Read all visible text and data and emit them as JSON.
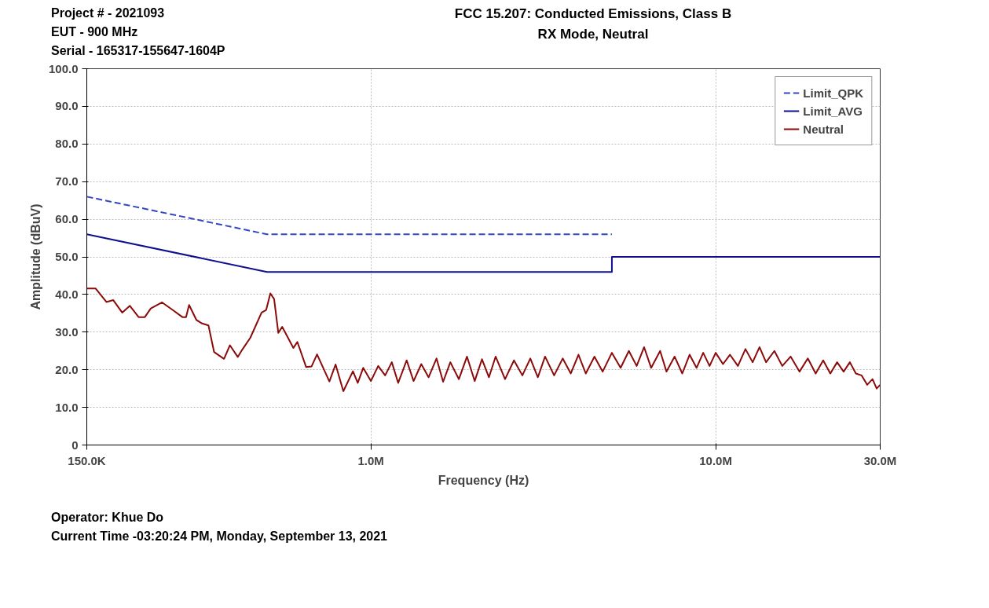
{
  "chart_data": {
    "type": "line",
    "title": "FCC 15.207: Conducted Emissions, Class B",
    "subtitle": "RX Mode, Neutral",
    "xlabel": "Frequency (Hz)",
    "ylabel": "Amplitude (dBuV)",
    "annotations": [
      "Project # - 2021093",
      "EUT - 900 MHz",
      "Serial - 165317-155647-1604P",
      "Operator: Khue Do",
      "Current Time -03:20:24 PM, Monday, September 13, 2021"
    ],
    "log": "x",
    "grid": true,
    "legend": "top right",
    "xlim": [
      150000,
      30000000
    ],
    "xticks": [
      {
        "value": 150000,
        "label": "150.0K"
      },
      {
        "value": 1000000,
        "label": "1.0M"
      },
      {
        "value": 10000000,
        "label": "10.0M"
      },
      {
        "value": 30000000,
        "label": "30.0M"
      }
    ],
    "ylim": [
      0,
      100
    ],
    "yticks": [
      0,
      {
        "value": 10,
        "label": "10.0"
      },
      {
        "value": 20,
        "label": "20.0"
      },
      {
        "value": 30,
        "label": "30.0"
      },
      {
        "value": 40,
        "label": "40.0"
      },
      {
        "value": 50,
        "label": "50.0"
      },
      {
        "value": 60,
        "label": "60.0"
      },
      {
        "value": 70,
        "label": "70.0"
      },
      {
        "value": 80,
        "label": "80.0"
      },
      {
        "value": 90,
        "label": "90.0"
      },
      {
        "value": 100,
        "label": "100.0"
      }
    ],
    "series": [
      {
        "name": "Limit_QPK",
        "color": "#3346c4",
        "line_style": "dashed",
        "x": [
          150000,
          500000,
          5000000
        ],
        "values": [
          66,
          56,
          56
        ]
      },
      {
        "name": "Limit_AVG",
        "color": "#10108f",
        "line_style": "solid",
        "x": [
          150000,
          500000,
          5000000,
          5000000,
          30000000
        ],
        "values": [
          56,
          46,
          46,
          50,
          50
        ]
      },
      {
        "name": "Neutral",
        "color": "#8b0a0a",
        "line_style": "solid",
        "x": [
          150000,
          159000,
          171000,
          179000,
          190000,
          200000,
          212000,
          221000,
          230000,
          248000,
          266000,
          284000,
          291000,
          297000,
          312000,
          324000,
          338000,
          351000,
          375000,
          390000,
          411000,
          424000,
          447000,
          482000,
          497000,
          511000,
          524000,
          539000,
          553000,
          596000,
          612000,
          649000,
          673000,
          698000,
          758000,
          790000,
          832000,
          887000,
          916000,
          950000,
          1000000,
          1050000,
          1100000,
          1150000,
          1200000,
          1270000,
          1330000,
          1400000,
          1470000,
          1550000,
          1620000,
          1700000,
          1800000,
          1900000,
          2000000,
          2100000,
          2200000,
          2300000,
          2450000,
          2600000,
          2750000,
          2900000,
          3050000,
          3200000,
          3400000,
          3600000,
          3800000,
          4000000,
          4200000,
          4450000,
          4700000,
          5000000,
          5300000,
          5600000,
          5900000,
          6200000,
          6500000,
          6900000,
          7200000,
          7600000,
          8000000,
          8400000,
          8800000,
          9200000,
          9600000,
          10000000,
          10500000,
          11000000,
          11600000,
          12200000,
          12800000,
          13400000,
          14000000,
          14800000,
          15600000,
          16500000,
          17500000,
          18500000,
          19500000,
          20500000,
          21500000,
          22500000,
          23500000,
          24500000,
          25500000,
          26500000,
          27500000,
          28500000,
          29300000,
          30000000
        ],
        "values": [
          41.6,
          41.6,
          38,
          38.5,
          35.2,
          37,
          34,
          34,
          36.3,
          37.9,
          35.9,
          34,
          34,
          37.2,
          33.2,
          32.3,
          31.8,
          24.7,
          22.9,
          26.5,
          23.4,
          25.4,
          28.5,
          35.2,
          35.9,
          40.3,
          38.8,
          29.8,
          31.4,
          25.8,
          27.4,
          20.7,
          20.9,
          24.1,
          16.9,
          21.4,
          14.3,
          19.6,
          16.5,
          20.5,
          17,
          21,
          18.5,
          22,
          16.5,
          22.5,
          17,
          21.5,
          18,
          23,
          16.8,
          22,
          17.5,
          23.5,
          17,
          22.8,
          18,
          23.5,
          17.5,
          22.5,
          18.5,
          23,
          18,
          23.5,
          18.5,
          23,
          19,
          24,
          19,
          23.5,
          19.5,
          24.5,
          20.5,
          25,
          21,
          26,
          20.5,
          25,
          19.5,
          23.5,
          19,
          24,
          20.5,
          24.5,
          21,
          24.5,
          21.5,
          24,
          21,
          25.5,
          22,
          26,
          22,
          25,
          21,
          23.5,
          19.5,
          23,
          19,
          22.5,
          19,
          22,
          19.5,
          22,
          19,
          18.5,
          16,
          17.5,
          15,
          16
        ]
      }
    ]
  }
}
